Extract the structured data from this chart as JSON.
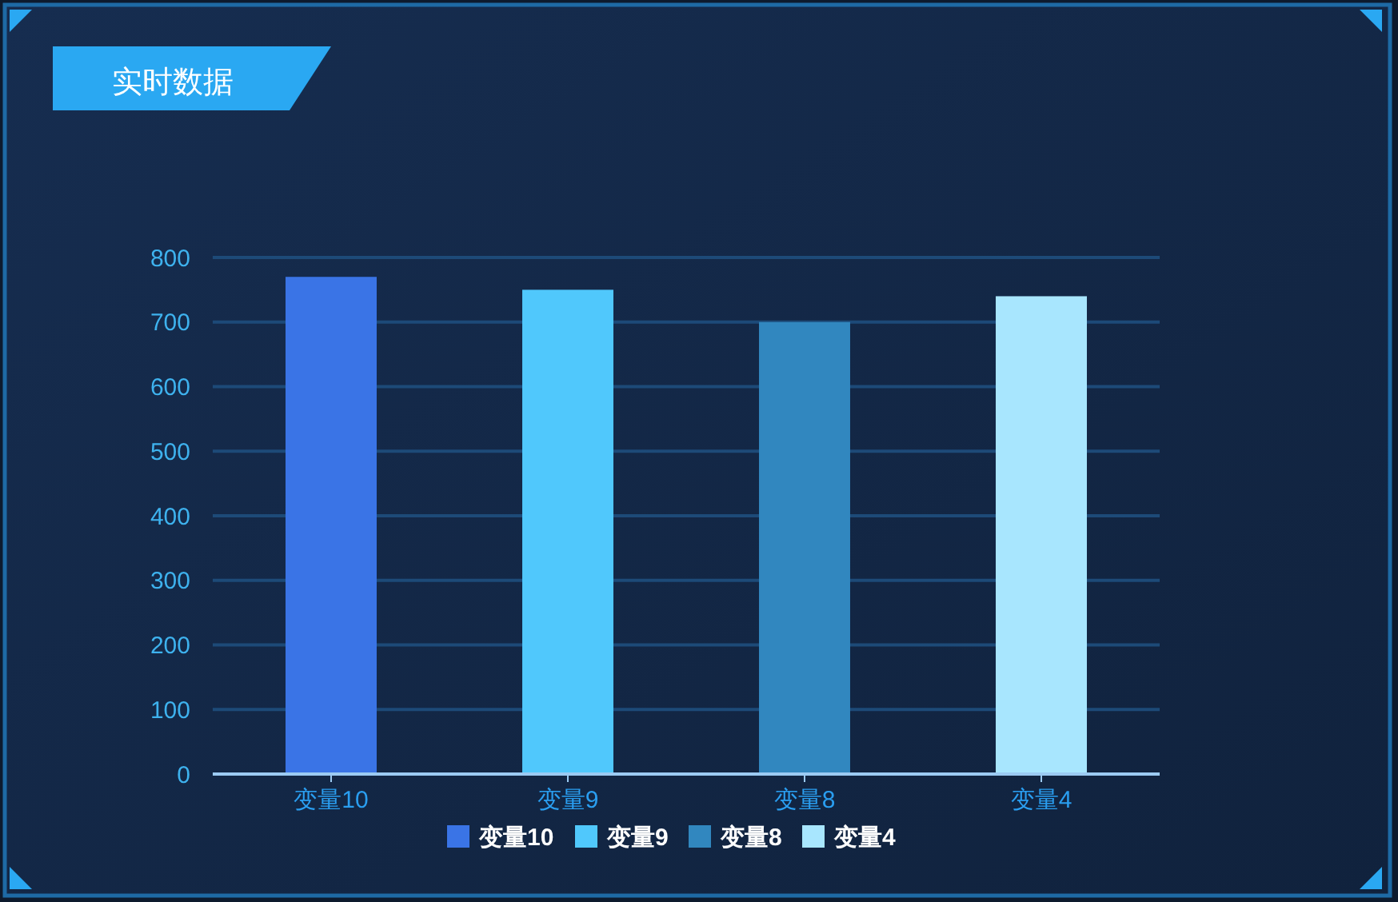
{
  "chart_data": {
    "type": "bar",
    "title": "实时数据",
    "categories": [
      "变量10",
      "变量9",
      "变量8",
      "变量4"
    ],
    "series": [
      {
        "name": "变量10",
        "color": "#3a74e6",
        "values": [
          770,
          null,
          null,
          null
        ]
      },
      {
        "name": "变量9",
        "color": "#50c8fc",
        "values": [
          null,
          750,
          null,
          null
        ]
      },
      {
        "name": "变量8",
        "color": "#3187bf",
        "values": [
          null,
          null,
          700,
          null
        ]
      },
      {
        "name": "变量4",
        "color": "#a8e6fe",
        "values": [
          null,
          null,
          null,
          740
        ]
      }
    ],
    "stacked": true,
    "ylim": [
      0,
      800
    ],
    "yticks": [
      0,
      100,
      200,
      300,
      400,
      500,
      600,
      700,
      800
    ],
    "grid": "y",
    "legend": "bottom"
  }
}
